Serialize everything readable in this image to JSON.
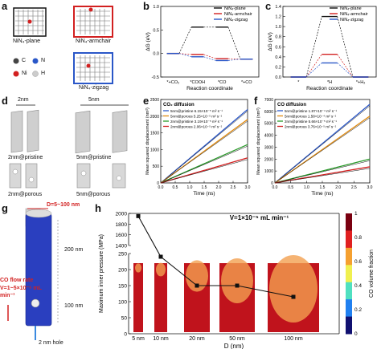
{
  "panel_labels": {
    "a": "a",
    "b": "b",
    "c": "c",
    "d": "d",
    "e": "e",
    "f": "f",
    "g": "g",
    "h": "h"
  },
  "panel_a": {
    "structures": [
      "NiN₄-plane",
      "NiN₄-armchair",
      "NiN₄-zigzag"
    ],
    "legend": [
      {
        "symbol": "C",
        "color": "#444444"
      },
      {
        "symbol": "N",
        "color": "#2a57c8"
      },
      {
        "symbol": "Ni",
        "color": "#d22020"
      },
      {
        "symbol": "H",
        "color": "#bbbbbb"
      }
    ]
  },
  "panel_b": {
    "chart_data": {
      "type": "line",
      "ylabel": "ΔG (eV)",
      "xlabel": "Reaction coordinate",
      "ylim": [
        -0.5,
        1.0
      ],
      "yticks": [
        "-0.5",
        "0.0",
        "0.5",
        "1.0"
      ],
      "categories": [
        "*+CO₂",
        "*COOH",
        "*CO",
        "*+CO"
      ],
      "series": [
        {
          "name": "NiN₄-plane",
          "color": "#111111",
          "values": [
            0.0,
            0.56,
            0.56,
            -0.12
          ]
        },
        {
          "name": "NiN₄-armchair",
          "color": "#d22020",
          "values": [
            0.0,
            -0.02,
            -0.11,
            -0.12
          ]
        },
        {
          "name": "NiN₄-zigzag",
          "color": "#2a57c8",
          "values": [
            0.0,
            -0.07,
            -0.15,
            -0.12
          ]
        }
      ]
    }
  },
  "panel_c": {
    "chart_data": {
      "type": "line",
      "ylabel": "ΔG (eV)",
      "xlabel": "Reaction coordinate",
      "ylim": [
        0.0,
        1.4
      ],
      "yticks": [
        "0.0",
        "0.2",
        "0.4",
        "0.6",
        "0.8",
        "1.0",
        "1.2",
        "1.4"
      ],
      "categories": [
        "*",
        "*H",
        "*+H₂"
      ],
      "series": [
        {
          "name": "NiN₄-plane",
          "color": "#111111",
          "values": [
            0.0,
            1.2,
            0.0
          ]
        },
        {
          "name": "NiN₄-armchair",
          "color": "#d22020",
          "values": [
            0.0,
            0.45,
            0.0
          ]
        },
        {
          "name": "NiN₄-zigzag",
          "color": "#2a57c8",
          "values": [
            0.0,
            0.28,
            0.0
          ]
        }
      ]
    }
  },
  "panel_d": {
    "top_labels": [
      "2nm",
      "5nm"
    ],
    "captions": [
      "2nm@pristine",
      "5nm@pristine",
      "2nm@porous",
      "5nm@porous"
    ]
  },
  "panel_e": {
    "chart_data": {
      "type": "line",
      "title": "CO₂ diffusion",
      "xlabel": "Time (ns)",
      "ylabel": "Mean squared displacement (nm²)",
      "xlim": [
        0,
        3.0
      ],
      "ylim": [
        0,
        2500
      ],
      "xticks": [
        "0.0",
        "0.5",
        "1.0",
        "1.5",
        "2.0",
        "2.5",
        "3.0"
      ],
      "yticks": [
        "0",
        "500",
        "1000",
        "1500",
        "2000",
        "2500"
      ],
      "series": [
        {
          "name": "5nm@pristine 6.15×10⁻⁵ m² s⁻¹",
          "color": "#2a57c8",
          "x": [
            0,
            3.0
          ],
          "y": [
            0,
            2200
          ]
        },
        {
          "name": "5nm@porous 5.25×10⁻⁵ m² s⁻¹",
          "color": "#e08a10",
          "x": [
            0,
            3.0
          ],
          "y": [
            0,
            1900
          ]
        },
        {
          "name": "2nm@pristine 3.19×10⁻⁵ m² s⁻¹",
          "color": "#2a9a2a",
          "x": [
            0,
            3.0
          ],
          "y": [
            0,
            1150
          ]
        },
        {
          "name": "2nm@porous 2.06×10⁻⁵ m² s⁻¹",
          "color": "#d22020",
          "x": [
            0,
            3.0
          ],
          "y": [
            0,
            750
          ]
        }
      ]
    }
  },
  "panel_f": {
    "chart_data": {
      "type": "line",
      "title": "CO diffusion",
      "xlabel": "Time (ns)",
      "ylabel": "Mean squared displacement (nm²)",
      "xlim": [
        0,
        3.0
      ],
      "ylim": [
        0,
        7000
      ],
      "xticks": [
        "0.0",
        "0.5",
        "1.0",
        "1.5",
        "2.0",
        "2.5",
        "3.0"
      ],
      "yticks": [
        "0",
        "1000",
        "2000",
        "3000",
        "4000",
        "5000",
        "6000",
        "7000"
      ],
      "series": [
        {
          "name": "5nm@pristine 1.87×10⁻⁴ m² s⁻¹",
          "color": "#2a57c8",
          "x": [
            0,
            3.0
          ],
          "y": [
            0,
            6600
          ]
        },
        {
          "name": "5nm@porous 1.58×10⁻⁴ m² s⁻¹",
          "color": "#e08a10",
          "x": [
            0,
            3.0
          ],
          "y": [
            0,
            5600
          ]
        },
        {
          "name": "2nm@pristine 5.66×10⁻⁵ m² s⁻¹",
          "color": "#2a9a2a",
          "x": [
            0,
            3.0
          ],
          "y": [
            0,
            2000
          ]
        },
        {
          "name": "2nm@porous 3.76×10⁻⁵ m² s⁻¹",
          "color": "#d22020",
          "x": [
            0,
            3.0
          ],
          "y": [
            0,
            1350
          ]
        }
      ]
    }
  },
  "panel_g": {
    "diameter_label": "D=5~100 nm",
    "height_top": "200 nm",
    "height_bottom": "100 nm",
    "flow_label_1": "CO flow rate",
    "flow_label_2": "V=1~5×10⁻⁵ mL",
    "flow_label_3": "min⁻¹",
    "hole_label": "2 nm hole"
  },
  "panel_h": {
    "chart_data": {
      "type": "line",
      "title": "V=1×10⁻⁵ mL min⁻¹",
      "xlabel": "D (nm)",
      "ylabel": "Maximum inner pressure (MPa)",
      "categories": [
        "5 nm",
        "10 nm",
        "20 nm",
        "50 nm",
        "100 nm"
      ],
      "values": [
        1950,
        240,
        150,
        150,
        115
      ],
      "yticks": [
        "0",
        "50",
        "100",
        "150",
        "200",
        "250",
        "1400",
        "1600",
        "1800",
        "2000"
      ],
      "colorbar_label": "CO volume fraction",
      "colorbar_ticks": [
        "0",
        "0.2",
        "0.4",
        "0.6",
        "0.8",
        "1"
      ]
    }
  }
}
